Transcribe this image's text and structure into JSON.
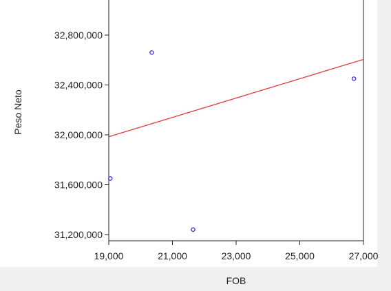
{
  "chart_data": {
    "type": "scatter",
    "xlabel": "FOB",
    "ylabel": "Peso Neto",
    "xlim": [
      19000,
      27000
    ],
    "ylim": [
      31200000,
      33000000
    ],
    "x_ticks": [
      19000,
      21000,
      23000,
      25000,
      27000
    ],
    "x_tick_labels": [
      "19,000",
      "21,000",
      "23,000",
      "25,000",
      "27,000"
    ],
    "y_ticks": [
      31200000,
      31600000,
      32000000,
      32400000,
      32800000
    ],
    "y_tick_labels": [
      "31,200,000",
      "31,600,000",
      "32,000,000",
      "32,400,000",
      "32,800,000"
    ],
    "points": [
      {
        "x": 19050,
        "y": 31650000
      },
      {
        "x": 20350,
        "y": 32660000
      },
      {
        "x": 21650,
        "y": 31240000
      },
      {
        "x": 26700,
        "y": 32450000
      }
    ],
    "fit_line": {
      "x": [
        19000,
        27000
      ],
      "y": [
        31985000,
        32605000
      ]
    },
    "grid": false,
    "colors": {
      "points": "#2b2bd9",
      "fit_line": "#e03c3c",
      "outer_background": "#f0f0f0",
      "plot_background": "#ffffff",
      "axis": "#222222"
    }
  }
}
